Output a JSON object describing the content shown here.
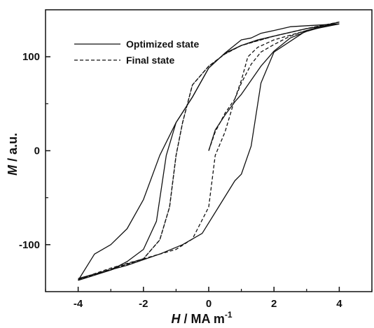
{
  "chart_data": {
    "type": "line",
    "xlabel": {
      "italic": "H",
      "rest": " / MA m",
      "sup": "-1"
    },
    "ylabel": {
      "italic": "M",
      "rest": " / a.u."
    },
    "xlim": [
      -5,
      5
    ],
    "ylim": [
      -150,
      150
    ],
    "x_ticks": [
      -4,
      -2,
      0,
      2,
      4
    ],
    "y_ticks": [
      -100,
      0,
      100
    ],
    "grid": false,
    "legend_position": "top-left",
    "colors": {
      "line": "#111111",
      "axis": "#111111",
      "background": "#ffffff"
    },
    "series": [
      {
        "name": "Optimized state",
        "style": "solid",
        "branches": [
          {
            "x": [
              0,
              0.2,
              0.5,
              0.8,
              1.0,
              1.3,
              1.6,
              2.0,
              2.5,
              3.0,
              3.5,
              4.0
            ],
            "y": [
              0,
              22,
              38,
              52,
              60,
              75,
              90,
              106,
              120,
              127,
              132,
              135
            ]
          },
          {
            "x": [
              4.0,
              3.0,
              2.0,
              1.5,
              1.0,
              0.5,
              0.0,
              -0.5,
              -1.0,
              -1.5,
              -2.0,
              -2.5,
              -3.0,
              -3.5,
              -4.0
            ],
            "y": [
              135,
              130,
              122,
              118,
              112,
              104,
              88,
              57,
              30,
              -5,
              -52,
              -83,
              -100,
              -110,
              -138
            ]
          },
          {
            "x": [
              -4.0,
              -3.0,
              -2.5,
              -2.0,
              -1.6,
              -1.3,
              -1.0,
              -0.5,
              0.0,
              0.5,
              1.0,
              1.3,
              1.6,
              2.0,
              2.5,
              3.0,
              4.0
            ],
            "y": [
              -138,
              -127,
              -118,
              -105,
              -75,
              -5,
              30,
              57,
              88,
              104,
              118,
              120,
              125,
              128,
              132,
              133,
              135
            ]
          },
          {
            "x": [
              4.0,
              3.0,
              2.0,
              1.6,
              1.3,
              1.0,
              0.8,
              0.3,
              -0.2,
              -0.8,
              -1.5,
              -2.5,
              -4.0
            ],
            "y": [
              135,
              128,
              105,
              72,
              5,
              -25,
              -32,
              -60,
              -88,
              -100,
              -110,
              -122,
              -136
            ]
          }
        ]
      },
      {
        "name": "Final state",
        "style": "dashed",
        "branches": [
          {
            "x": [
              0,
              0.2,
              0.5,
              0.8,
              1.0,
              1.3,
              1.6,
              2.0,
              2.5,
              3.0,
              4.0
            ],
            "y": [
              0,
              20,
              40,
              55,
              72,
              92,
              105,
              113,
              122,
              128,
              137
            ]
          },
          {
            "x": [
              4.0,
              3.0,
              2.0,
              1.5,
              1.0,
              0.5,
              0.0,
              -0.5,
              -0.8,
              -1.0,
              -1.2,
              -1.5,
              -2.0,
              -3.0,
              -4.0
            ],
            "y": [
              137,
              130,
              122,
              117,
              112,
              103,
              90,
              70,
              30,
              -5,
              -60,
              -95,
              -115,
              -125,
              -137
            ]
          },
          {
            "x": [
              -4.0,
              -3.0,
              -2.0,
              -1.5,
              -1.2,
              -1.0,
              -0.8,
              -0.5,
              0.0,
              0.5,
              1.0,
              1.5,
              2.0,
              3.0,
              4.0
            ],
            "y": [
              -137,
              -127,
              -115,
              -95,
              -60,
              -5,
              30,
              70,
              90,
              103,
              112,
              117,
              122,
              130,
              137
            ]
          },
          {
            "x": [
              4.0,
              3.0,
              2.0,
              1.5,
              1.2,
              1.0,
              0.8,
              0.5,
              0.2,
              0.0,
              -0.5,
              -1.0,
              -2.0,
              -3.0,
              -4.0
            ],
            "y": [
              137,
              128,
              118,
              110,
              100,
              75,
              55,
              20,
              -5,
              -60,
              -94,
              -105,
              -115,
              -126,
              -137
            ]
          }
        ]
      }
    ]
  }
}
